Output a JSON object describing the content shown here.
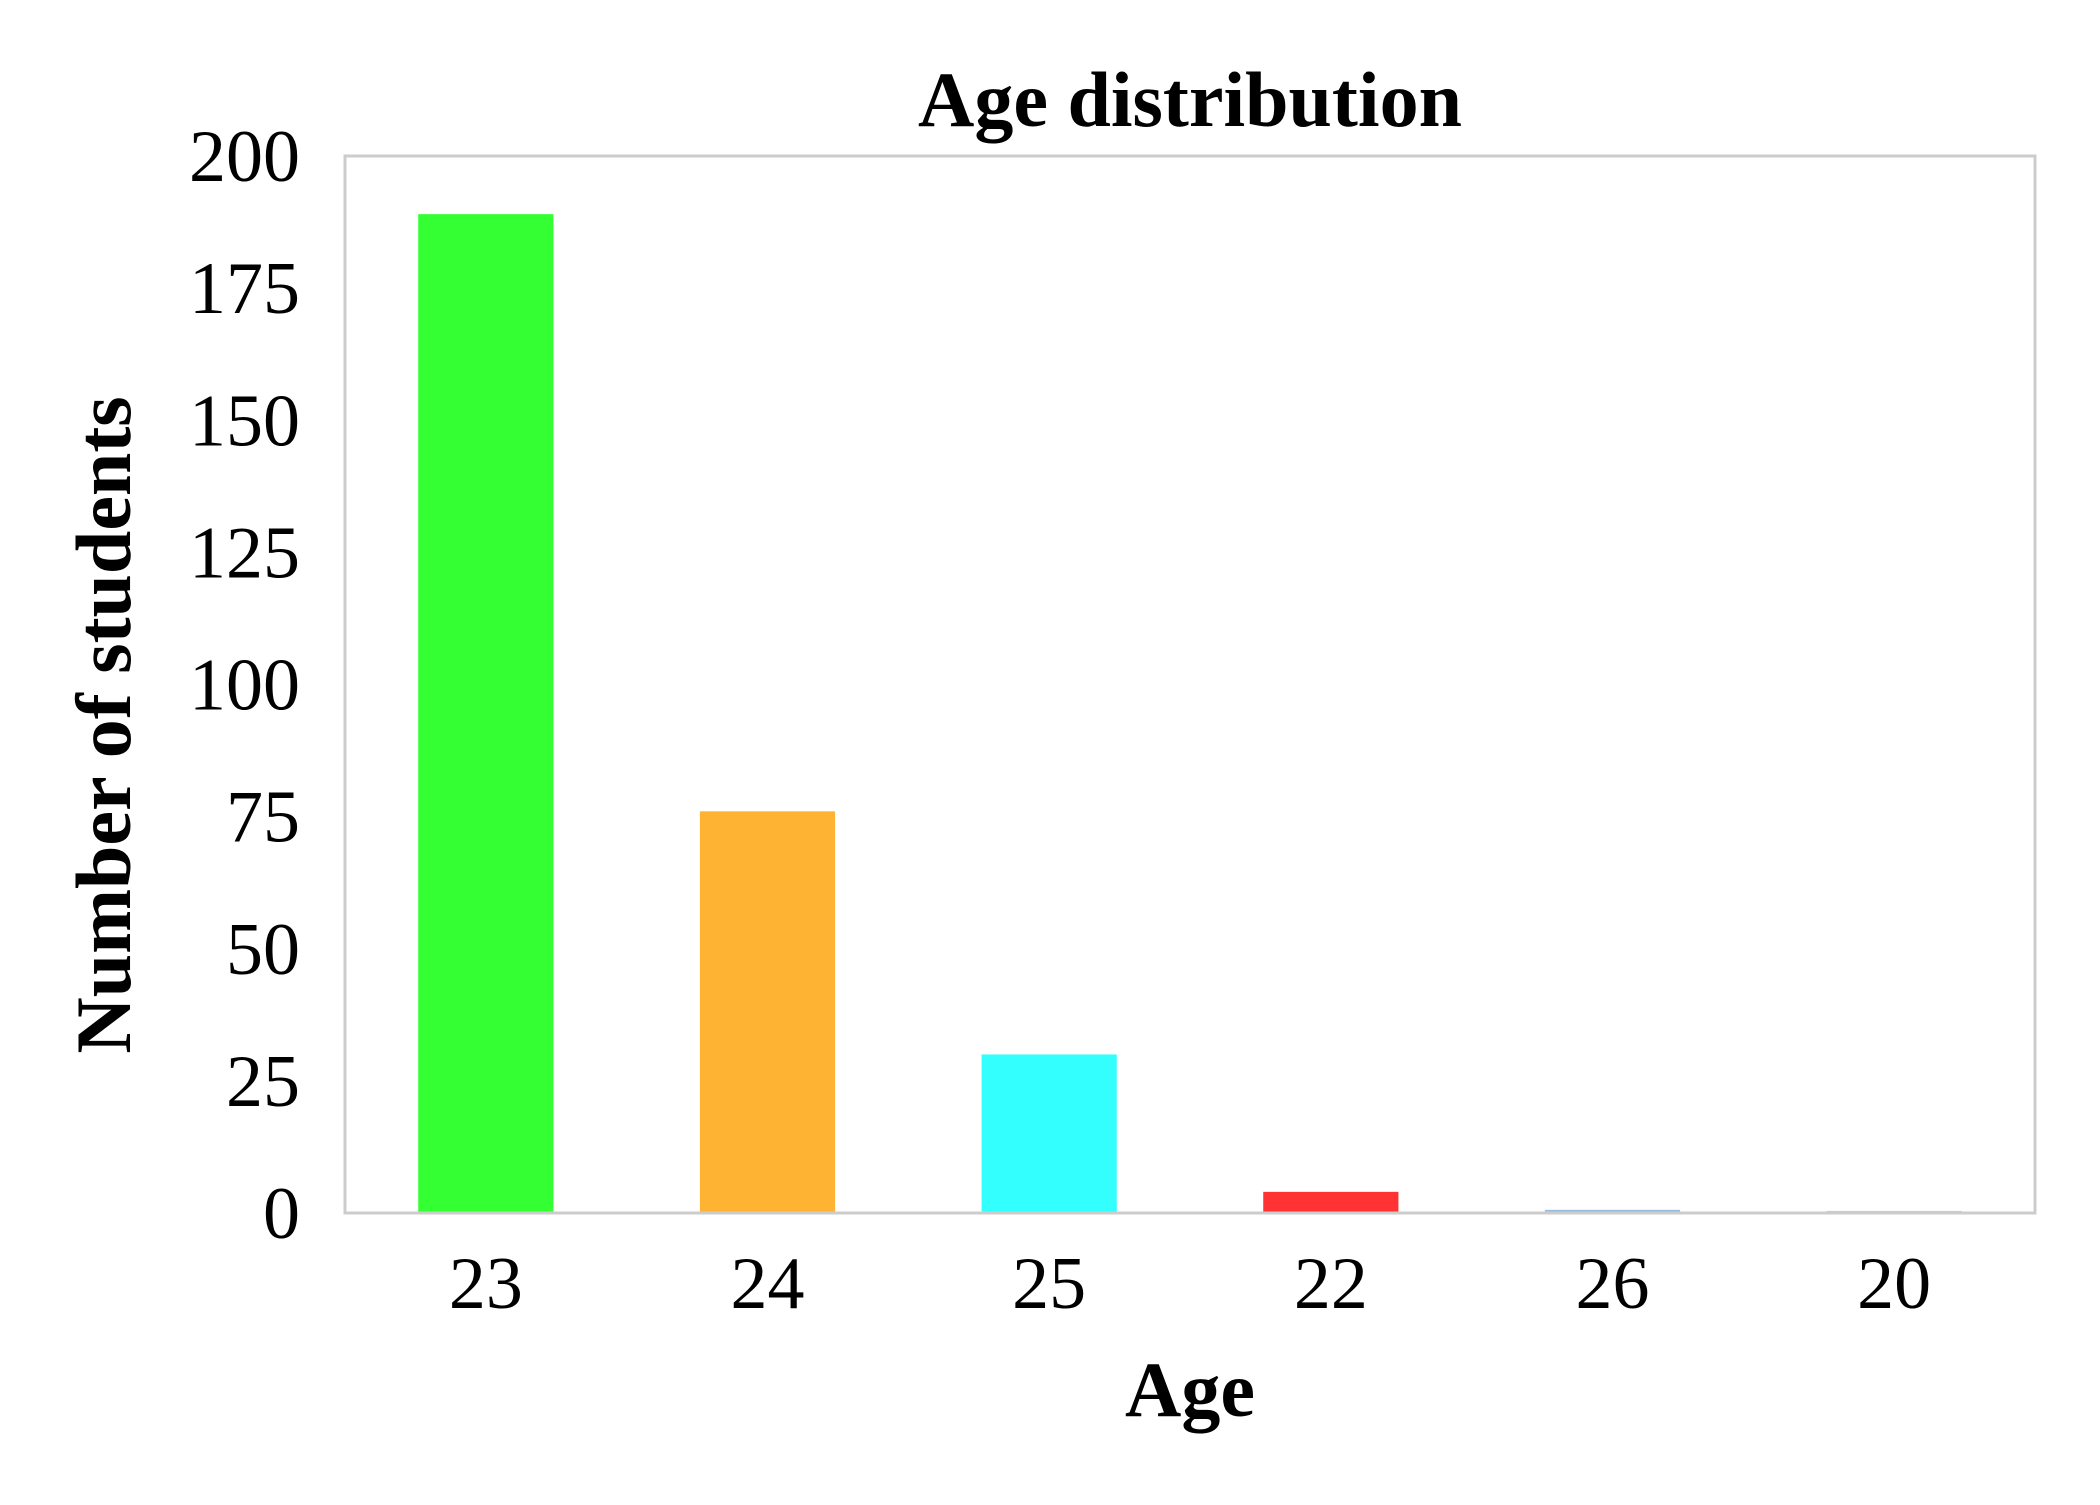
{
  "chart_data": {
    "type": "bar",
    "title": "Age distribution",
    "xlabel": "Age",
    "ylabel": "Number of students",
    "categories": [
      "23",
      "24",
      "25",
      "22",
      "26",
      "20"
    ],
    "values": [
      189,
      76,
      30,
      4,
      0.6,
      0.4
    ],
    "colors": [
      "#33ff33",
      "#ffb333",
      "#33ffff",
      "#ff3333",
      "#99bbdd",
      "#ddbbdd"
    ],
    "ylim": [
      0,
      200
    ],
    "yticks": [
      0,
      25,
      50,
      75,
      100,
      125,
      150,
      175,
      200
    ],
    "grid": false,
    "frame_color": "#cccccc"
  }
}
